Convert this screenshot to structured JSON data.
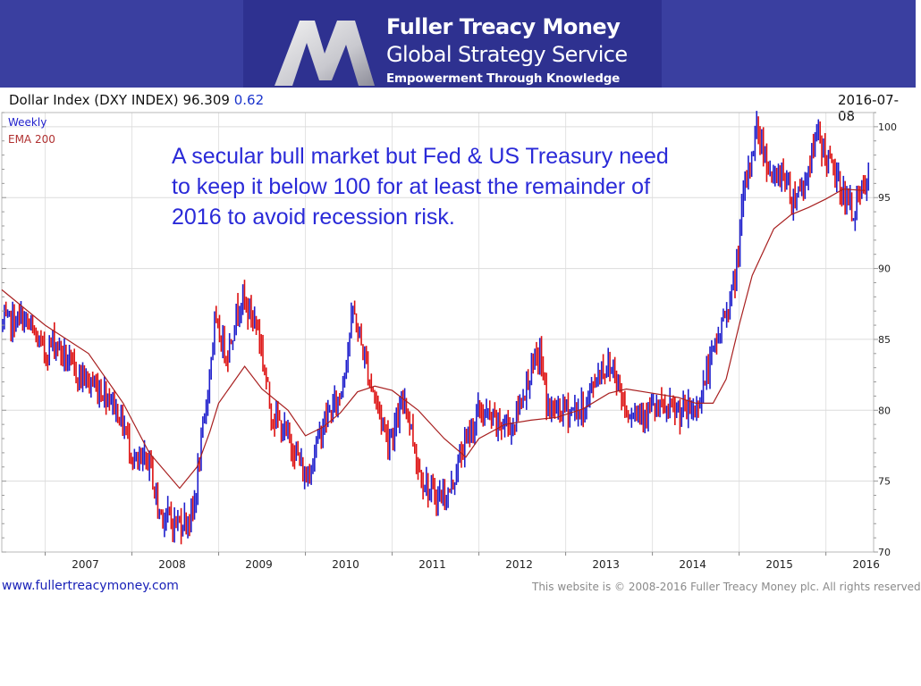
{
  "brand": {
    "name": "Fuller Treacy Money",
    "service": "Global Strategy Service",
    "tagline": "Empowerment Through Knowledge",
    "colors": {
      "banner": "#3a3fa0",
      "banner_center": "#2e3190"
    }
  },
  "header": {
    "instrument": "Dollar Index (DXY INDEX)",
    "last": "96.309",
    "change": "0.62",
    "date": "2016-07-08"
  },
  "annotation": "A secular bull market but Fed & US Treasury need to keep it below 100 for at least the remainder of 2016 to avoid recession risk.",
  "footer": {
    "url": "www.fullertreacymoney.com",
    "copyright": "This website is © 2008-2016 Fuller Treacy Money plc. All rights reserved"
  },
  "chart_data": {
    "type": "line",
    "frequency": "Weekly",
    "legend": [
      "Weekly",
      "EMA 200"
    ],
    "legend_placement": "top-left",
    "y_axis_side": "right",
    "ylim": [
      70,
      101
    ],
    "yticks": [
      70,
      75,
      80,
      85,
      90,
      95,
      100
    ],
    "xlim": [
      2006.5,
      2016.55
    ],
    "x_tick_labels": [
      "2007",
      "2008",
      "2009",
      "2010",
      "2011",
      "2012",
      "2013",
      "2014",
      "2015",
      "2016"
    ],
    "grid": true,
    "colors": {
      "up": "#1f1fcc",
      "down": "#dd1111",
      "ema": "#a82020"
    },
    "series": [
      {
        "name": "Weekly",
        "x": [
          2006.5,
          2006.75,
          2007.0,
          2007.1,
          2007.3,
          2007.5,
          2007.75,
          2007.9,
          2008.05,
          2008.2,
          2008.3,
          2008.5,
          2008.7,
          2008.85,
          2008.95,
          2009.1,
          2009.25,
          2009.45,
          2009.6,
          2009.9,
          2010.0,
          2010.2,
          2010.4,
          2010.55,
          2010.75,
          2010.95,
          2011.05,
          2011.15,
          2011.3,
          2011.45,
          2011.65,
          2011.8,
          2012.0,
          2012.2,
          2012.4,
          2012.55,
          2012.7,
          2012.8,
          2013.0,
          2013.2,
          2013.4,
          2013.55,
          2013.7,
          2013.85,
          2014.0,
          2014.15,
          2014.3,
          2014.5,
          2014.65,
          2014.8,
          2014.95,
          2015.05,
          2015.2,
          2015.4,
          2015.5,
          2015.6,
          2015.75,
          2015.9,
          2016.0,
          2016.15,
          2016.3,
          2016.5
        ],
        "values": [
          86,
          86.5,
          84,
          85,
          83,
          82,
          81,
          79,
          76,
          76.5,
          73,
          72,
          72.5,
          80,
          86,
          84,
          88,
          86,
          80,
          77,
          75,
          79,
          81,
          87,
          82,
          78,
          79,
          81,
          76,
          74,
          74,
          77,
          80,
          79,
          79,
          82,
          84,
          80,
          80,
          80,
          83,
          83,
          80,
          80,
          80,
          80,
          79.8,
          80,
          83,
          86,
          89,
          95,
          100,
          96,
          97,
          95,
          96,
          99.5,
          98,
          96,
          94,
          96.3
        ]
      },
      {
        "name": "EMA 200",
        "x": [
          2006.5,
          2007.0,
          2007.5,
          2007.9,
          2008.2,
          2008.55,
          2008.75,
          2008.9,
          2009.0,
          2009.3,
          2009.5,
          2009.8,
          2010.0,
          2010.2,
          2010.4,
          2010.6,
          2010.8,
          2011.0,
          2011.3,
          2011.6,
          2011.85,
          2012.0,
          2012.3,
          2012.6,
          2012.9,
          2013.2,
          2013.5,
          2013.7,
          2014.0,
          2014.3,
          2014.5,
          2014.7,
          2014.85,
          2015.0,
          2015.15,
          2015.4,
          2015.6,
          2015.8,
          2016.0,
          2016.2,
          2016.45
        ],
        "values": [
          88.5,
          86,
          84,
          80.5,
          77,
          74.5,
          76,
          78.5,
          80.5,
          83.1,
          81.5,
          80,
          78.2,
          78.8,
          79.8,
          81.3,
          81.7,
          81.4,
          80,
          78,
          76.7,
          78,
          79,
          79.3,
          79.5,
          80.1,
          81.2,
          81.5,
          81.2,
          80.9,
          80.5,
          80.5,
          82.2,
          86,
          89.5,
          92.8,
          93.8,
          94.3,
          94.9,
          95.6,
          95.5
        ]
      }
    ]
  }
}
